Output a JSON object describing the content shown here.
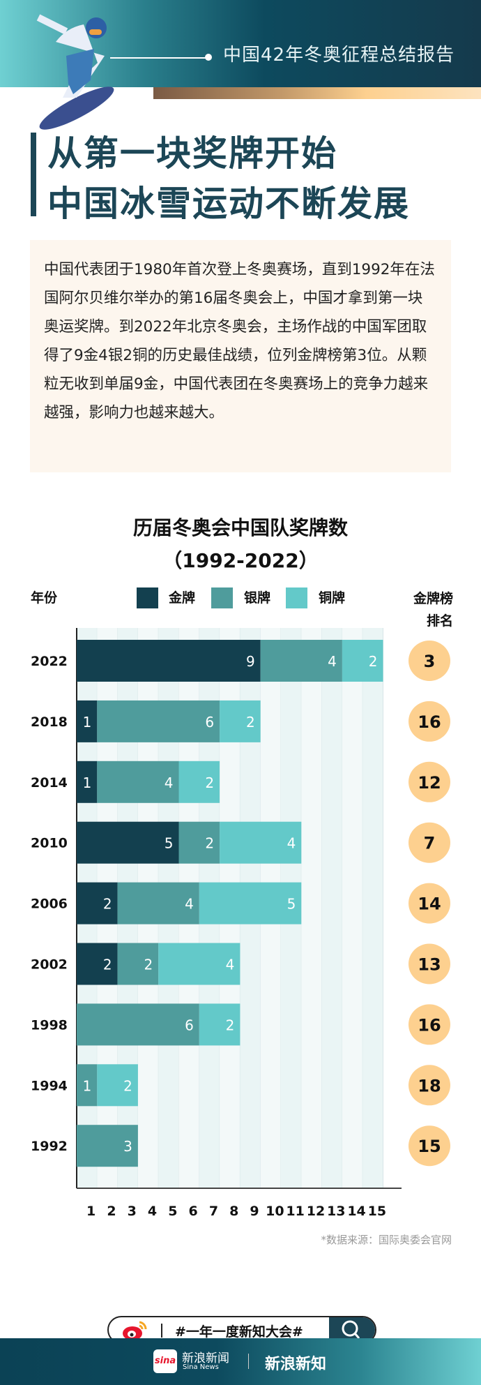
{
  "header": {
    "title": "中国42年冬奥征程总结报告"
  },
  "headline": {
    "line1": "从第一块奖牌开始",
    "line2": "中国冰雪运动不断发展"
  },
  "intro": "中国代表团于1980年首次登上冬奥赛场，直到1992年在法国阿尔贝维尔举办的第16届冬奥会上，中国才拿到第一块奥运奖牌。到2022年北京冬奥会，主场作战的中国军团取得了9金4银2铜的历史最佳战绩，位列金牌榜第3位。从颗粒无收到单届9金，中国代表团在冬奥赛场上的竞争力越来越强，影响力也越来越大。",
  "chart_data": {
    "type": "bar",
    "stacked": true,
    "orientation": "horizontal",
    "title": "历届冬奥会中国队奖牌数",
    "subtitle": "（1992-2022）",
    "ylabel": "年份",
    "rank_label": "金牌榜排名",
    "categories": [
      "2022",
      "2018",
      "2014",
      "2010",
      "2006",
      "2002",
      "1998",
      "1994",
      "1992"
    ],
    "series": [
      {
        "name": "金牌",
        "color": "#13404f",
        "values": [
          9,
          1,
          1,
          5,
          2,
          2,
          0,
          0,
          0
        ]
      },
      {
        "name": "银牌",
        "color": "#4f9c9c",
        "values": [
          4,
          6,
          4,
          2,
          4,
          2,
          6,
          1,
          3
        ]
      },
      {
        "name": "铜牌",
        "color": "#63c9c9",
        "values": [
          2,
          2,
          2,
          4,
          5,
          4,
          2,
          2,
          0
        ]
      }
    ],
    "ranks": [
      3,
      16,
      12,
      7,
      14,
      13,
      16,
      18,
      15
    ],
    "rank_color": "#fdd08f",
    "xlim": [
      0,
      15
    ],
    "xticks": [
      1,
      2,
      3,
      4,
      5,
      6,
      7,
      8,
      9,
      10,
      11,
      12,
      13,
      14,
      15
    ],
    "grid": true,
    "legend": "top"
  },
  "source": "*数据来源：国际奥委会官网",
  "search": {
    "tag": "#一年一度新知大会#"
  },
  "footer": {
    "brand1": "新浪新闻",
    "brand1_en": "Sina News",
    "brand2": "新浪新知",
    "logo": "sina"
  }
}
